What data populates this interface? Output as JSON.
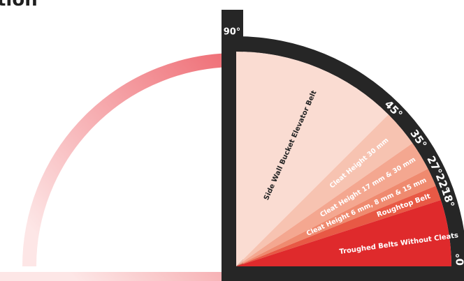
{
  "header": {
    "title_fragment": "tion"
  },
  "colors": {
    "frame": "#262626",
    "arc_gradient_start": "#fde6e6",
    "arc_gradient_end": "#ee6870",
    "label_on_light": "#262626",
    "label_on_dark": "#ffffff"
  },
  "scale": {
    "angle_labels": [
      "90°",
      "45°",
      "35°",
      "27°",
      "22°",
      "18°",
      "0°"
    ]
  },
  "zones": [
    {
      "from_deg": 45,
      "to_deg": 90,
      "fill": "#fadcd2",
      "label": "Side Wall Bucket Elevator Belt"
    },
    {
      "from_deg": 35,
      "to_deg": 45,
      "fill": "#f7c3b1",
      "label": "Cleat Height 30 mm"
    },
    {
      "from_deg": 27,
      "to_deg": 35,
      "fill": "#f4a790",
      "label": "Cleat Height 17 mm & 30 mm"
    },
    {
      "from_deg": 22,
      "to_deg": 27,
      "fill": "#ef8a6f",
      "label": "Cleat Height 6 mm, 8 mm & 15 mm"
    },
    {
      "from_deg": 18,
      "to_deg": 22,
      "fill": "#e85945",
      "label": "Roughtop Belt"
    },
    {
      "from_deg": 0,
      "to_deg": 18,
      "fill": "#df2a2c",
      "label": "Troughed Belts Without Cleats"
    }
  ]
}
